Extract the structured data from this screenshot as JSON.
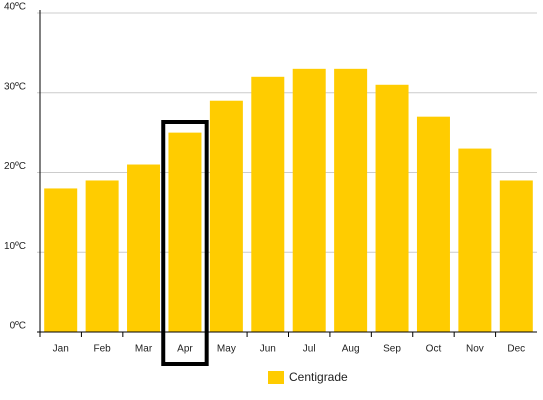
{
  "chart_data": {
    "type": "bar",
    "categories": [
      "Jan",
      "Feb",
      "Mar",
      "Apr",
      "May",
      "Jun",
      "Jul",
      "Aug",
      "Sep",
      "Oct",
      "Nov",
      "Dec"
    ],
    "series": [
      {
        "name": "Centigrade",
        "color": "#ffcc00",
        "values": [
          18,
          19,
          21,
          25,
          29,
          32,
          33,
          33,
          31,
          27,
          23,
          19
        ]
      }
    ],
    "ylim": [
      0,
      40
    ],
    "yticks": [
      {
        "value": 0,
        "label": "0ºC"
      },
      {
        "value": 10,
        "label": "10ºC"
      },
      {
        "value": 20,
        "label": "20ºC"
      },
      {
        "value": 30,
        "label": "30ºC"
      },
      {
        "value": 40,
        "label": "40ºC"
      }
    ],
    "grid": true
  }
}
